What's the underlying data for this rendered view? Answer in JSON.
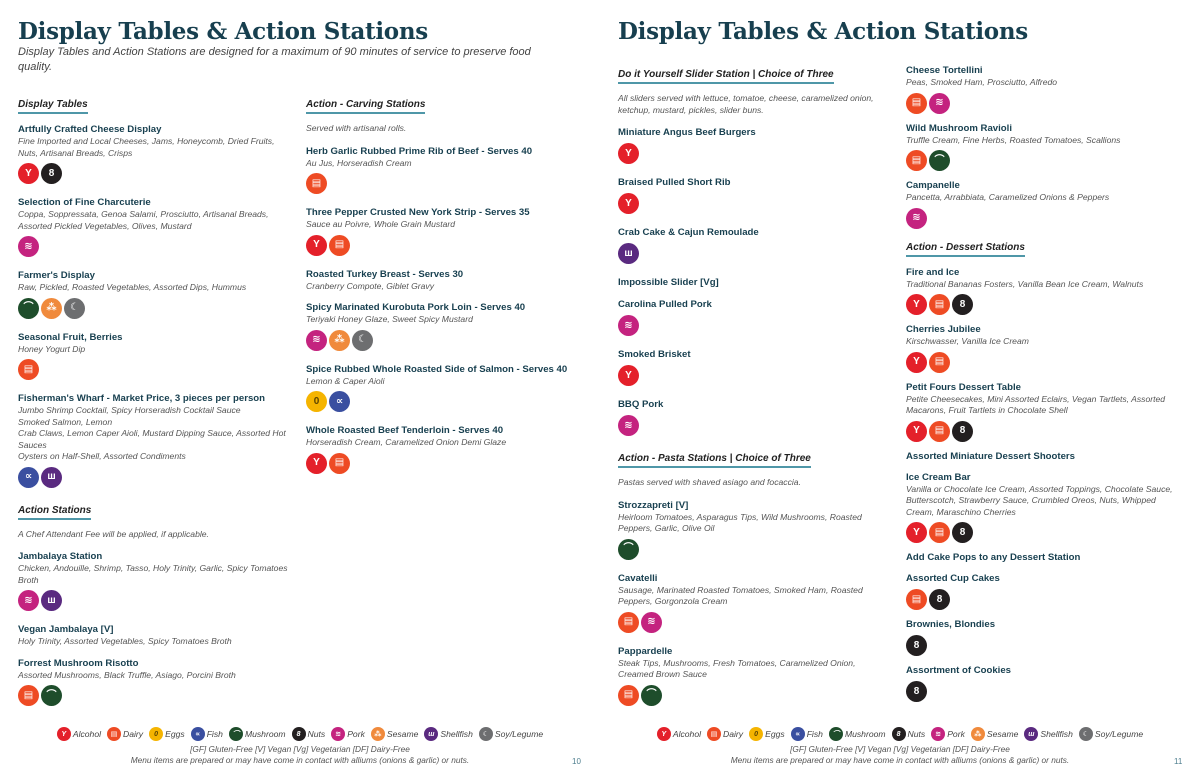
{
  "allergens": {
    "alcohol": {
      "label": "Alcohol",
      "color": "#e4202a",
      "icon": "alcohol-icon",
      "glyph": "Y"
    },
    "dairy": {
      "label": "Dairy",
      "color": "#ee4b24",
      "icon": "dairy-icon",
      "glyph": "▤"
    },
    "eggs": {
      "label": "Eggs",
      "color": "#f5b400",
      "icon": "egg-icon",
      "glyph": "0"
    },
    "fish": {
      "label": "Fish",
      "color": "#3a4fa0",
      "icon": "fish-icon",
      "glyph": "∝"
    },
    "mushroom": {
      "label": "Mushroom",
      "color": "#1e4d2b",
      "icon": "mushroom-icon",
      "glyph": "⌒"
    },
    "nuts": {
      "label": "Nuts",
      "color": "#231f20",
      "icon": "nuts-icon",
      "glyph": "8"
    },
    "pork": {
      "label": "Pork",
      "color": "#c4237f",
      "icon": "pork-icon",
      "glyph": "≋"
    },
    "sesame": {
      "label": "Sesame",
      "color": "#f08a3c",
      "icon": "sesame-icon",
      "glyph": "⁂"
    },
    "shellfish": {
      "label": "Shellfish",
      "color": "#5a2a80",
      "icon": "shellfish-icon",
      "glyph": "ш"
    },
    "soy": {
      "label": "Soy/Legume",
      "color": "#6d6e70",
      "icon": "soy-icon",
      "glyph": "☾"
    }
  },
  "legend_order": [
    "alcohol",
    "dairy",
    "eggs",
    "fish",
    "mushroom",
    "nuts",
    "pork",
    "sesame",
    "shellfish",
    "soy"
  ],
  "footer": {
    "diet": "[GF] Gluten-Free [V] Vegan [Vg] Vegetarian [DF] Dairy-Free",
    "note": "Menu items are prepared or may have come in contact with alliums (onions & garlic) or nuts."
  },
  "pages": [
    {
      "title": "Display Tables & Action Stations",
      "intro": "Display Tables and Action Stations are designed for a maximum of 90 minutes of service to preserve food quality.",
      "number": "10",
      "columns": [
        [
          {
            "heading": "Display Tables",
            "items": [
              {
                "name": "Artfully Crafted Cheese Display",
                "desc": "Fine Imported and Local Cheeses, Jams, Honeycomb, Dried Fruits, Nuts, Artisanal Breads, Crisps",
                "icons": [
                  "alcohol",
                  "nuts"
                ]
              },
              {
                "name": "Selection of Fine Charcuterie",
                "desc": "Coppa, Soppressata, Genoa Salami, Prosciutto, Artisanal Breads, Assorted Pickled Vegetables, Olives, Mustard",
                "icons": [
                  "pork"
                ]
              },
              {
                "name": "Farmer's Display",
                "desc": "Raw, Pickled, Roasted Vegetables, Assorted Dips, Hummus",
                "icons": [
                  "mushroom",
                  "sesame",
                  "soy"
                ]
              },
              {
                "name": "Seasonal Fruit, Berries",
                "desc": "Honey Yogurt Dip",
                "icons": [
                  "dairy"
                ]
              },
              {
                "name": "Fisherman's Wharf - Market Price, 3 pieces per person",
                "desc": "Jumbo Shrimp Cocktail, Spicy Horseradish Cocktail Sauce\nSmoked Salmon, Lemon\nCrab Claws, Lemon Caper Aioli, Mustard Dipping Sauce, Assorted Hot Sauces\nOysters on Half-Shell, Assorted Condiments",
                "icons": [
                  "fish",
                  "shellfish"
                ]
              }
            ]
          },
          {
            "heading": "Action Stations",
            "note": "A Chef Attendant Fee will be applied, if applicable.",
            "items": [
              {
                "name": "Jambalaya Station",
                "desc": "Chicken, Andouille, Shrimp, Tasso, Holy Trinity, Garlic, Spicy Tomatoes Broth",
                "icons": [
                  "pork",
                  "shellfish"
                ]
              },
              {
                "name": "Vegan Jambalaya [V]",
                "desc": "Holy Trinity, Assorted Vegetables, Spicy Tomatoes Broth",
                "icons": []
              },
              {
                "name": "Forrest Mushroom Risotto",
                "desc": "Assorted Mushrooms, Black Truffle, Asiago, Porcini Broth",
                "icons": [
                  "dairy",
                  "mushroom"
                ]
              }
            ]
          }
        ],
        [
          {
            "heading": "Action - Carving Stations",
            "note": "Served with artisanal rolls.",
            "items": [
              {
                "name": "Herb Garlic Rubbed Prime Rib of Beef - Serves 40",
                "desc": "Au Jus, Horseradish Cream",
                "icons": [
                  "dairy"
                ]
              },
              {
                "name": "Three Pepper Crusted New York Strip - Serves 35",
                "desc": "Sauce au Poivre, Whole Grain Mustard",
                "icons": [
                  "alcohol",
                  "dairy"
                ]
              },
              {
                "name": "Roasted Turkey Breast - Serves 30",
                "desc": "Cranberry Compote, Giblet Gravy",
                "icons": []
              },
              {
                "name": "Spicy Marinated Kurobuta Pork Loin - Serves 40",
                "desc": "Teriyaki Honey Glaze, Sweet Spicy Mustard",
                "icons": [
                  "pork",
                  "sesame",
                  "soy"
                ]
              },
              {
                "name": "Spice Rubbed Whole Roasted Side of Salmon - Serves 40",
                "desc": "Lemon & Caper Aioli",
                "icons": [
                  "eggs",
                  "fish"
                ]
              },
              {
                "name": "Whole Roasted Beef Tenderloin - Serves 40",
                "desc": "Horseradish Cream, Caramelized Onion Demi Glaze",
                "icons": [
                  "alcohol",
                  "dairy"
                ]
              }
            ]
          }
        ]
      ]
    },
    {
      "title": "Display Tables & Action Stations",
      "number": "11",
      "columns": [
        [
          {
            "heading": "Do it Yourself Slider Station | Choice of Three",
            "note": "All sliders served with lettuce, tomatoe, cheese, caramelized onion, ketchup, mustard, pickles, slider buns.",
            "items": [
              {
                "name": "Miniature Angus Beef Burgers",
                "desc": "",
                "icons": [
                  "alcohol"
                ]
              },
              {
                "name": "Braised Pulled Short Rib",
                "desc": "",
                "icons": [
                  "alcohol"
                ]
              },
              {
                "name": "Crab Cake & Cajun Remoulade",
                "desc": "",
                "icons": [
                  "shellfish"
                ]
              },
              {
                "name": "Impossible Slider [Vg]",
                "desc": "",
                "icons": []
              },
              {
                "name": "Carolina Pulled Pork",
                "desc": "",
                "icons": [
                  "pork"
                ]
              },
              {
                "name": "Smoked Brisket",
                "desc": "",
                "icons": [
                  "alcohol"
                ]
              },
              {
                "name": "BBQ Pork",
                "desc": "",
                "icons": [
                  "pork"
                ]
              }
            ]
          },
          {
            "heading": "Action - Pasta Stations | Choice of Three",
            "note": "Pastas served with shaved asiago and focaccia.",
            "items": [
              {
                "name": "Strozzapreti [V]",
                "desc": "Heirloom Tomatoes, Asparagus Tips, Wild Mushrooms, Roasted Peppers, Garlic, Olive Oil",
                "icons": [
                  "mushroom"
                ]
              },
              {
                "name": "Cavatelli",
                "desc": "Sausage, Marinated Roasted Tomatoes, Smoked Ham, Roasted Peppers, Gorgonzola Cream",
                "icons": [
                  "dairy",
                  "pork"
                ]
              },
              {
                "name": "Pappardelle",
                "desc": "Steak Tips, Mushrooms, Fresh Tomatoes, Caramelized Onion, Creamed Brown Sauce",
                "icons": [
                  "dairy",
                  "mushroom"
                ]
              }
            ]
          }
        ],
        [
          {
            "heading": "",
            "items": [
              {
                "name": "Cheese Tortellini",
                "desc": "Peas, Smoked Ham, Prosciutto, Alfredo",
                "icons": [
                  "dairy",
                  "pork"
                ]
              },
              {
                "name": "Wild Mushroom Ravioli",
                "desc": "Truffle Cream, Fine Herbs, Roasted Tomatoes, Scallions",
                "icons": [
                  "dairy",
                  "mushroom"
                ]
              },
              {
                "name": "Campanelle",
                "desc": "Pancetta, Arrabbiata, Caramelized Onions & Peppers",
                "icons": [
                  "pork"
                ]
              }
            ]
          },
          {
            "heading": "Action - Dessert Stations",
            "items": [
              {
                "name": "Fire and Ice",
                "desc": "Traditional Bananas Fosters, Vanilla Bean Ice Cream, Walnuts",
                "icons": [
                  "alcohol",
                  "dairy",
                  "nuts"
                ]
              },
              {
                "name": "Cherries Jubilee",
                "desc": "Kirschwasser, Vanilla Ice Cream",
                "icons": [
                  "alcohol",
                  "dairy"
                ]
              },
              {
                "name": "Petit Fours Dessert Table",
                "desc": "Petite Cheesecakes, Mini Assorted Eclairs, Vegan Tartlets, Assorted Macarons, Fruit Tartlets in Chocolate Shell",
                "icons": [
                  "alcohol",
                  "dairy",
                  "nuts"
                ]
              },
              {
                "name": "Assorted Miniature Dessert Shooters",
                "desc": "",
                "icons": []
              },
              {
                "name": "Ice Cream Bar",
                "desc": "Vanilla or Chocolate Ice Cream, Assorted Toppings, Chocolate Sauce, Butterscotch, Strawberry Sauce, Crumbled Oreos, Nuts, Whipped Cream, Maraschino Cherries",
                "icons": [
                  "alcohol",
                  "dairy",
                  "nuts"
                ]
              },
              {
                "name": "Add Cake Pops to any Dessert Station",
                "desc": "",
                "icons": []
              },
              {
                "name": "Assorted Cup Cakes",
                "desc": "",
                "icons": [
                  "dairy",
                  "nuts"
                ]
              },
              {
                "name": "Brownies, Blondies",
                "desc": "",
                "icons": [
                  "nuts"
                ]
              },
              {
                "name": "Assortment of Cookies",
                "desc": "",
                "icons": [
                  "nuts"
                ]
              }
            ]
          }
        ]
      ]
    }
  ]
}
